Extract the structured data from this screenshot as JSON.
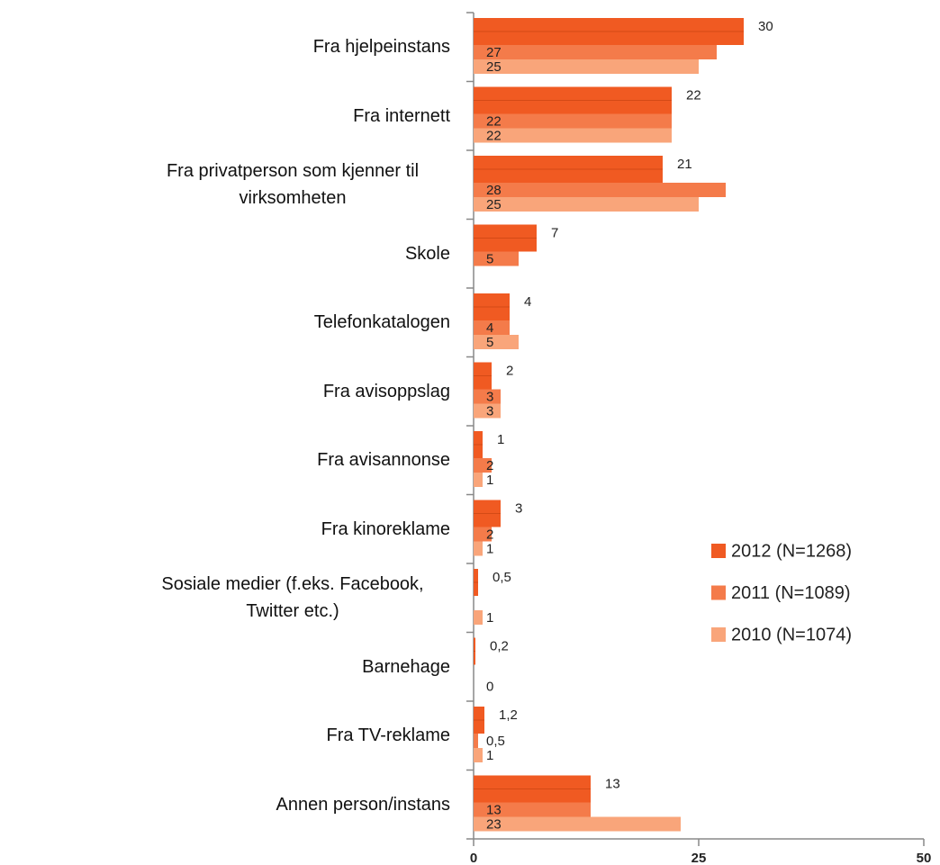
{
  "chart_data": {
    "type": "bar",
    "orientation": "horizontal",
    "categories": [
      "Fra hjelpeinstans",
      "Fra internett",
      "Fra privatperson som kjenner til virksomheten",
      "Skole",
      "Telefonkatalogen",
      "Fra avisoppslag",
      "Fra avisannonse",
      "Fra kinoreklame",
      "Sosiale medier (f.eks. Facebook, Twitter etc.)",
      "Barnehage",
      "Fra TV-reklame",
      "Annen person/instans"
    ],
    "series": [
      {
        "name": "2012 (N=1268)",
        "color": "#f05a22",
        "values": [
          30,
          22,
          21,
          7,
          4,
          2,
          1,
          3,
          0.5,
          0.2,
          1.2,
          13
        ],
        "value_labels": [
          "30",
          "22",
          "21",
          "7",
          "4",
          "2",
          "1",
          "3",
          "0,5",
          "0,2",
          "1,2",
          "13"
        ]
      },
      {
        "name": "2011 (N=1089)",
        "color": "#f47b4a",
        "values": [
          27,
          22,
          28,
          5,
          4,
          3,
          2,
          2,
          null,
          null,
          0.5,
          13
        ],
        "value_labels": [
          "27",
          "22",
          "28",
          "5",
          "4",
          "3",
          "2",
          "2",
          null,
          null,
          "0,5",
          "13"
        ]
      },
      {
        "name": "2010 (N=1074)",
        "color": "#f9a57a",
        "values": [
          25,
          22,
          25,
          null,
          5,
          3,
          1,
          1,
          1,
          0,
          1,
          23
        ],
        "value_labels": [
          "25",
          "22",
          "25",
          null,
          "5",
          "3",
          "1",
          "1",
          "1",
          "0",
          "1",
          "23"
        ]
      }
    ],
    "xlim": [
      0,
      50
    ],
    "xticks": [
      0,
      25,
      50
    ],
    "legend": "right"
  }
}
